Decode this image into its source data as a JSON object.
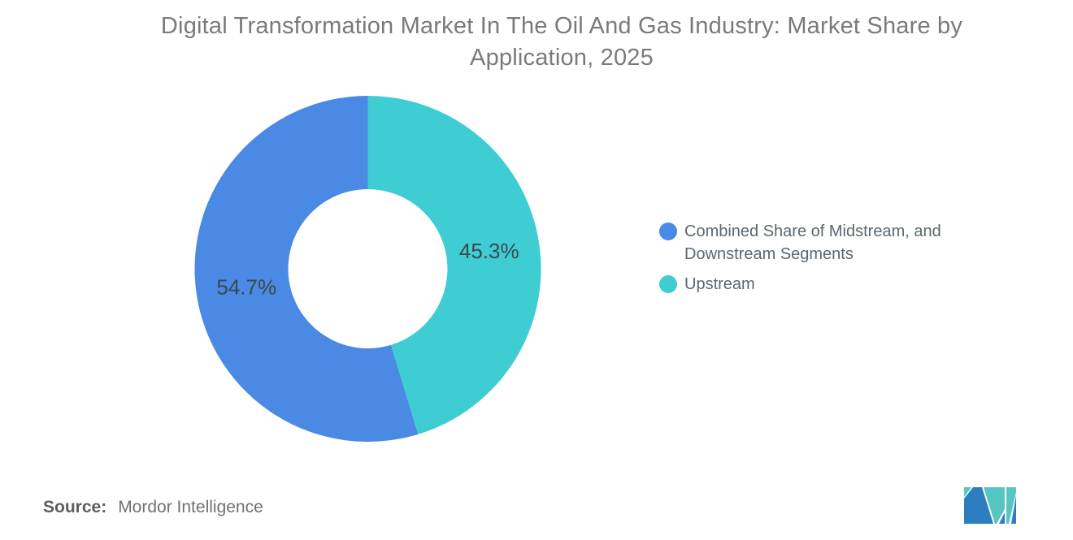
{
  "header": {
    "title_line1": "Digital Transformation Market In The Oil And Gas Industry: Market Share by",
    "title_line2": "Application, 2025"
  },
  "chart_data": {
    "type": "pie",
    "subtype": "donut",
    "title": "Digital Transformation Market In The Oil And Gas Industry: Market Share by Application, 2025",
    "unit": "%",
    "series": [
      {
        "name": "Combined Share of Midstream, and Downstream Segments",
        "value": 54.7,
        "label": "54.7%",
        "color": "#4A8AE4"
      },
      {
        "name": "Upstream",
        "value": 45.3,
        "label": "45.3%",
        "color": "#3ECDD3"
      }
    ],
    "direction": "counterclockwise",
    "start_angle_deg": 0,
    "donut_hole_ratio": 0.46,
    "label_color": "#3C4750",
    "legend_position": "right",
    "grid": false
  },
  "source": {
    "label": "Source:",
    "value": "Mordor Intelligence"
  },
  "logo": {
    "name": "mordor-intelligence-logo",
    "blue": "#2D7EC1",
    "teal": "#55C6C1"
  }
}
